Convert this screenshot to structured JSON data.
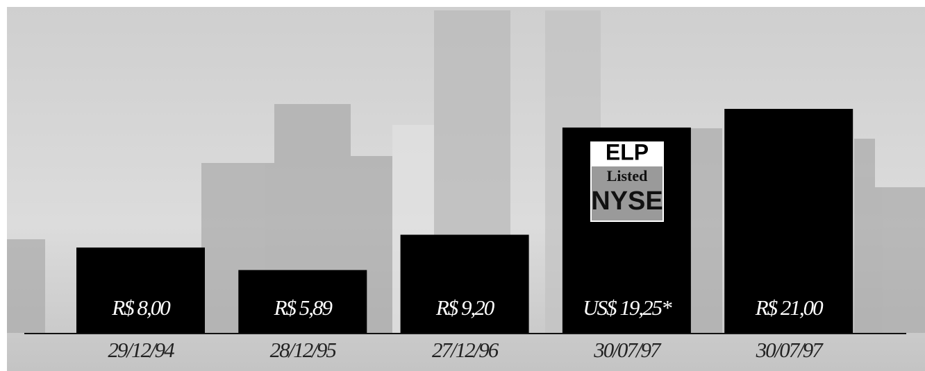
{
  "chart_data": {
    "type": "bar",
    "categories": [
      "29/12/94",
      "28/12/95",
      "27/12/96",
      "30/07/97",
      "30/07/97"
    ],
    "values": [
      8.0,
      5.89,
      9.2,
      19.25,
      21.0
    ],
    "value_labels": [
      "R$ 8,00",
      "R$ 5,89",
      "R$ 9,20",
      "US$ 19,25*",
      "R$ 21,00"
    ],
    "color": "#000000",
    "annotation": {
      "top": "ELP",
      "middle": "Listed",
      "bottom": "NYSE"
    }
  }
}
